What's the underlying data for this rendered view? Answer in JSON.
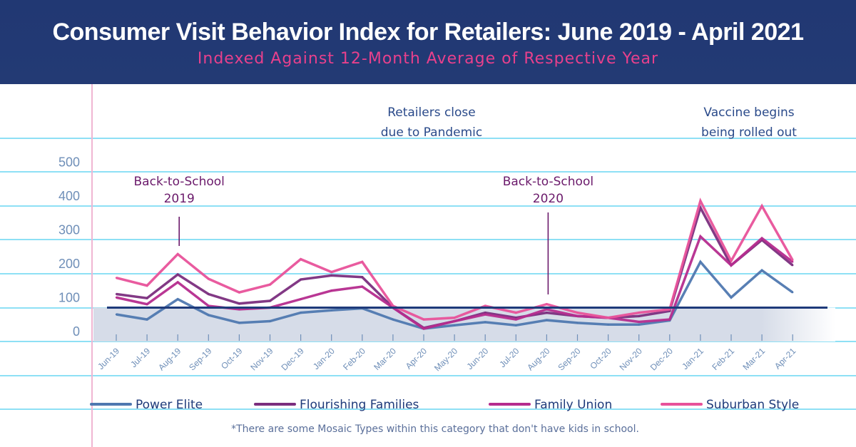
{
  "header": {
    "title": "Consumer Visit Behavior Index for Retailers: June 2019 - April 2021",
    "subtitle": "Indexed Against 12-Month Average of Respective Year"
  },
  "colors": {
    "header_bg": "#213873",
    "subtitle": "#e8408c",
    "gridline": "#8ee0f5",
    "margin_line": "#f0b6d2",
    "axis_text": "#6f8fb8",
    "annotation_purple": "#6b1a6b",
    "annotation_blue": "#2a4a8a",
    "baseline": "#1e3a7a",
    "fill": "#d6dce8"
  },
  "annotations": [
    {
      "id": "bts-2019",
      "lines": [
        "Back-to-School",
        "2019"
      ],
      "x": "Aug-19"
    },
    {
      "id": "pandemic",
      "lines": [
        "Retailers close",
        "due to Pandemic"
      ],
      "x": "Apr-20"
    },
    {
      "id": "bts-2020",
      "lines": [
        "Back-to-School",
        "2020"
      ],
      "x": "Aug-20"
    },
    {
      "id": "vaccine",
      "lines": [
        "Vaccine begins",
        "being rolled out"
      ],
      "x": "Jan-21"
    }
  ],
  "footnote": "*There are some Mosaic Types within this category that don't have kids in school.",
  "chart_data": {
    "type": "line",
    "title": "Consumer Visit Behavior Index for Retailers: June 2019 - April 2021",
    "subtitle": "Indexed Against 12-Month Average of Respective Year",
    "xlabel": "",
    "ylabel": "",
    "ylim": [
      0,
      500
    ],
    "yticks": [
      0,
      100,
      200,
      300,
      400,
      500
    ],
    "ytick_labels": [
      "0",
      "100",
      "200",
      "300",
      "400",
      "500"
    ],
    "grid": true,
    "legend_position": "bottom",
    "baseline": 100,
    "categories": [
      "Jun-19",
      "Jul-19",
      "Aug-19",
      "Sep-19",
      "Oct-19",
      "Nov-19",
      "Dec-19",
      "Jan-20",
      "Feb-20",
      "Mar-20",
      "Apr-20",
      "May-20",
      "Jun-20",
      "Jul-20",
      "Aug-20",
      "Sep-20",
      "Oct-20",
      "Nov-20",
      "Dec-20",
      "Jan-21",
      "Feb-21",
      "Mar-21",
      "Apr-21"
    ],
    "series": [
      {
        "name": "Power Elite",
        "color": "#4f78b0",
        "values": [
          80,
          65,
          125,
          78,
          55,
          60,
          85,
          92,
          98,
          65,
          38,
          48,
          57,
          48,
          63,
          55,
          50,
          50,
          62,
          235,
          130,
          210,
          145
        ]
      },
      {
        "name": "Flourishing Families",
        "color": "#7b2e7e",
        "values": [
          140,
          128,
          198,
          140,
          112,
          120,
          183,
          195,
          190,
          100,
          40,
          60,
          85,
          70,
          85,
          75,
          70,
          75,
          90,
          395,
          225,
          300,
          225
        ]
      },
      {
        "name": "Family Union",
        "color": "#b52c8e",
        "values": [
          130,
          110,
          175,
          105,
          95,
          100,
          125,
          150,
          162,
          100,
          38,
          60,
          80,
          65,
          95,
          75,
          70,
          58,
          65,
          310,
          225,
          305,
          235
        ]
      },
      {
        "name": "Suburban Style",
        "color": "#e8529a",
        "values": [
          188,
          165,
          258,
          185,
          145,
          168,
          243,
          205,
          235,
          105,
          65,
          70,
          105,
          85,
          110,
          85,
          70,
          85,
          95,
          415,
          238,
          400,
          240
        ]
      }
    ]
  }
}
